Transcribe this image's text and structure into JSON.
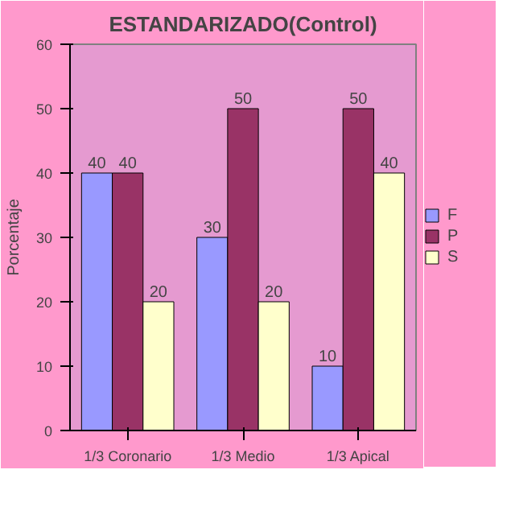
{
  "chart_data": {
    "type": "bar",
    "title": "ESTANDARIZADO(Control)",
    "ylabel": "Porcentaje",
    "categories": [
      "1/3 Coronario",
      "1/3 Medio",
      "1/3 Apical"
    ],
    "series": [
      {
        "name": "F",
        "color": "#9999ff",
        "values": [
          40,
          30,
          10
        ]
      },
      {
        "name": "P",
        "color": "#993366",
        "values": [
          40,
          50,
          50
        ]
      },
      {
        "name": "S",
        "color": "#ffffcc",
        "values": [
          20,
          20,
          40
        ]
      }
    ],
    "ylim": [
      0,
      60
    ],
    "yticks": [
      0,
      10,
      20,
      30,
      40,
      50,
      60
    ],
    "grid": false,
    "legend": "right",
    "data_labels": true
  }
}
